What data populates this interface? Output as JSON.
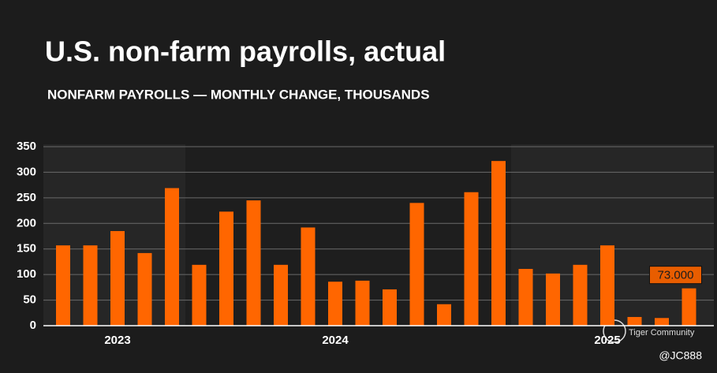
{
  "chart_data": {
    "type": "bar",
    "title": "U.S. non-farm payrolls, actual",
    "subtitle": "NONFARM PAYROLLS — MONTHLY CHANGE, THOUSANDS",
    "categories": [
      null,
      null,
      "2023",
      null,
      null,
      null,
      null,
      null,
      null,
      null,
      "2024",
      null,
      null,
      null,
      null,
      null,
      null,
      null,
      null,
      null,
      "2025",
      null,
      null,
      null
    ],
    "values": [
      157,
      157,
      185,
      142,
      269,
      119,
      223,
      245,
      119,
      192,
      86,
      88,
      71,
      240,
      42,
      261,
      322,
      111,
      102,
      119,
      157,
      17,
      15,
      73
    ],
    "value_labels": [
      null,
      null,
      null,
      null,
      null,
      null,
      null,
      null,
      null,
      null,
      null,
      null,
      null,
      null,
      null,
      null,
      null,
      null,
      null,
      null,
      null,
      null,
      null,
      "73.000"
    ],
    "color": "#ff6600",
    "ylim": [
      0,
      350
    ],
    "yticks": [
      0,
      50,
      100,
      150,
      200,
      250,
      300,
      350
    ],
    "grid": true,
    "annotations": [
      "Tiger Community",
      "@JC888"
    ]
  }
}
